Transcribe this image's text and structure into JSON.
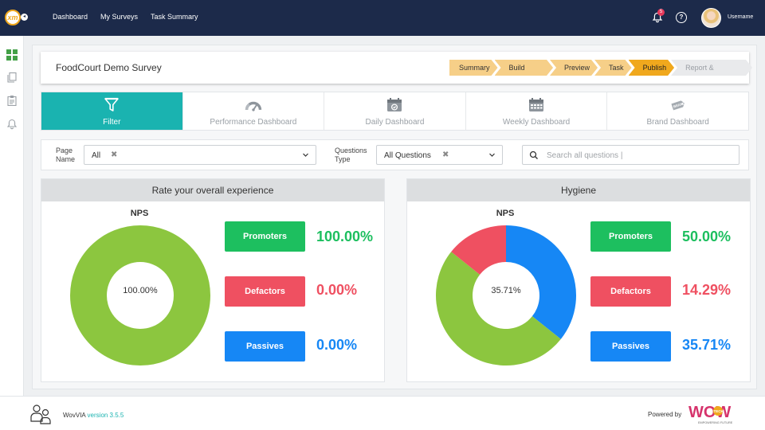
{
  "topbar": {
    "logo_text": "xm",
    "nav": [
      "Dashboard",
      "My Surveys",
      "Task Summary"
    ],
    "notification_count": "5",
    "help_icon": "?",
    "username": "Username"
  },
  "survey": {
    "title": "FoodCourt Demo Survey",
    "steps": [
      {
        "label": "Summary",
        "state": "done"
      },
      {
        "label": "Build Survey",
        "state": "done"
      },
      {
        "label": "Preview",
        "state": "done"
      },
      {
        "label": "Task",
        "state": "done"
      },
      {
        "label": "Publish",
        "state": "active"
      },
      {
        "label": "Report & Dashboard",
        "state": "inactive"
      }
    ]
  },
  "tabs": [
    {
      "label": "Filter",
      "icon": "filter-icon",
      "active": true
    },
    {
      "label": "Performance Dashboard",
      "icon": "gauge-icon",
      "active": false
    },
    {
      "label": "Daily Dashboard",
      "icon": "calendar-check-icon",
      "active": false
    },
    {
      "label": "Weekly Dashboard",
      "icon": "calendar-grid-icon",
      "active": false
    },
    {
      "label": "Brand Dashboard",
      "icon": "brand-tag-icon",
      "active": false,
      "tag_text": "BRAND"
    }
  ],
  "filters": {
    "page_name": {
      "label_line1": "Page",
      "label_line2": "Name",
      "value": "All"
    },
    "questions_type": {
      "label_line1": "Questions",
      "label_line2": "Type",
      "value": "All Questions"
    },
    "search": {
      "placeholder": "Search all questions |"
    },
    "clear_symbol": "✖"
  },
  "cards": [
    {
      "title": "Rate your overall experience",
      "nps_label": "NPS",
      "center_value": "100.00%",
      "stats": [
        {
          "label": "Promoters",
          "value": "100.00%"
        },
        {
          "label": "Defactors",
          "value": "0.00%"
        },
        {
          "label": "Passives",
          "value": "0.00%"
        }
      ]
    },
    {
      "title": "Hygiene",
      "nps_label": "NPS",
      "center_value": "35.71%",
      "stats": [
        {
          "label": "Promoters",
          "value": "50.00%"
        },
        {
          "label": "Defactors",
          "value": "14.29%"
        },
        {
          "label": "Passives",
          "value": "35.71%"
        }
      ]
    }
  ],
  "chart_data": [
    {
      "type": "pie",
      "title": "Rate your overall experience",
      "categories": [
        "Promoters",
        "Defactors",
        "Passives"
      ],
      "values": [
        100.0,
        0.0,
        0.0
      ],
      "colors": [
        "#8cc63f",
        "#ef5061",
        "#1687f5"
      ]
    },
    {
      "type": "pie",
      "title": "Hygiene",
      "categories": [
        "Promoters",
        "Defactors",
        "Passives"
      ],
      "values": [
        50.0,
        14.29,
        35.71
      ],
      "colors": [
        "#8cc63f",
        "#ef5061",
        "#1687f5"
      ]
    }
  ],
  "footer": {
    "brand": "WovVIA",
    "version": "version 3.5.5",
    "powered_by": "Powered by",
    "logo_word": "WOW",
    "logo_badge": "TECH",
    "logo_tagline": "EMPOWERING FUTURE"
  },
  "colors": {
    "topbar": "#1c2a4a",
    "accent_teal": "#1ab3b0",
    "step_done": "#f6cf88",
    "step_active": "#f0a81d",
    "promoters": "#1dbf5f",
    "defactors": "#ef5061",
    "passives": "#1687f5",
    "donut_promoters": "#8cc63f"
  }
}
